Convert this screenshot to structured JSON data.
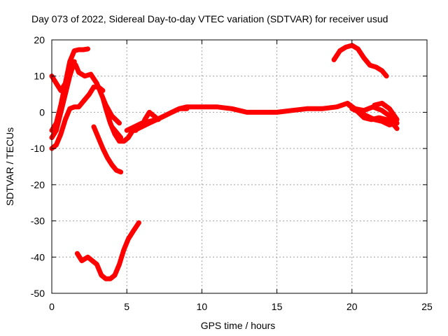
{
  "chart_data": {
    "type": "line",
    "title": "Day 073 of 2022, Sidereal Day-to-day VTEC variation (SDTVAR) for receiver usud",
    "xlabel": "GPS time / hours",
    "ylabel": "SDTVAR / TECUs",
    "xlim": [
      0,
      25
    ],
    "ylim": [
      -50,
      20
    ],
    "xticks": [
      0,
      5,
      10,
      15,
      20,
      25
    ],
    "yticks": [
      -50,
      -40,
      -30,
      -20,
      -10,
      0,
      10,
      20
    ],
    "grid": true,
    "series_color": "#ff0000",
    "series": [
      {
        "name": "arc-1",
        "x": [
          0.0,
          0.3,
          0.6,
          0.9,
          1.2,
          1.5,
          1.8,
          2.1,
          2.4
        ],
        "y": [
          -5,
          -3,
          2,
          8,
          14,
          17,
          17.3,
          17.3,
          17.5
        ]
      },
      {
        "name": "arc-2",
        "x": [
          0.0,
          0.3,
          0.6,
          0.9,
          1.2,
          1.4,
          1.6,
          1.8,
          2.2,
          2.6,
          3.0,
          3.3,
          3.6,
          4.0,
          4.5
        ],
        "y": [
          10,
          8,
          6,
          8,
          12,
          14,
          13,
          11,
          10,
          10.5,
          8,
          5,
          2,
          -1,
          -3
        ]
      },
      {
        "name": "arc-3",
        "x": [
          0.0,
          0.3,
          0.6,
          0.9,
          1.2,
          1.5,
          1.8,
          2.1,
          2.5,
          2.8,
          3.1,
          3.4
        ],
        "y": [
          -10,
          -9,
          -6,
          -2,
          1,
          1.5,
          1.5,
          3,
          5,
          7,
          7,
          6
        ]
      },
      {
        "name": "arc-4",
        "x": [
          0.0,
          0.3,
          0.6,
          0.9,
          1.2,
          1.5
        ],
        "y": [
          -7,
          -5,
          0,
          5,
          10,
          14
        ]
      },
      {
        "name": "arc-5",
        "x": [
          3.4,
          3.6,
          3.9,
          4.2,
          4.5,
          4.8,
          5.1,
          5.4,
          5.6
        ],
        "y": [
          4,
          1,
          -3,
          -6,
          -8,
          -8,
          -7,
          -5,
          -5
        ]
      },
      {
        "name": "arc-6",
        "x": [
          2.8,
          3.1,
          3.4,
          3.7,
          4.0,
          4.3,
          4.6
        ],
        "y": [
          -4,
          -7,
          -10,
          -12.5,
          -14.5,
          -16,
          -16.5
        ]
      },
      {
        "name": "arc-7",
        "x": [
          4.0,
          4.3,
          4.6
        ],
        "y": [
          -4,
          -5.5,
          -7
        ]
      },
      {
        "name": "arc-8",
        "x": [
          1.7,
          2.0,
          2.4,
          2.7,
          3.0,
          3.3,
          3.6,
          3.9,
          4.2,
          4.5,
          4.8,
          5.1,
          5.4,
          5.8
        ],
        "y": [
          -39,
          -41,
          -40,
          -41,
          -42,
          -45,
          -46,
          -46,
          -45,
          -42,
          -38,
          -35,
          -33,
          -30.5
        ]
      },
      {
        "name": "arc-9",
        "x": [
          5.0,
          5.5,
          6.0,
          6.5,
          7.0,
          7.5,
          8.0,
          8.5,
          9.0,
          10.0,
          11.0,
          12.0,
          13.0,
          14.0,
          15.0,
          16.0,
          17.0,
          18.0,
          19.0,
          19.7,
          20.2,
          20.8,
          21.4,
          22.0,
          22.5,
          23.0
        ],
        "y": [
          -5,
          -4,
          -3,
          -2.5,
          -2,
          -1,
          0,
          1,
          1.5,
          1.5,
          1.5,
          1,
          0,
          0,
          0,
          0.5,
          1,
          1,
          1.5,
          2.5,
          1,
          0.5,
          1.5,
          0.5,
          -1,
          -3
        ]
      },
      {
        "name": "arc-10",
        "x": [
          5.5,
          6.0,
          6.5,
          7.0,
          7.5,
          8.0,
          8.5,
          9.0
        ],
        "y": [
          -5,
          -4,
          -3,
          -2,
          -1,
          0,
          1,
          1
        ]
      },
      {
        "name": "arc-11",
        "x": [
          6.0,
          6.2,
          6.5,
          6.8,
          7.1
        ],
        "y": [
          -4,
          -2,
          0,
          -1,
          -2
        ]
      },
      {
        "name": "arc-12",
        "x": [
          19.8,
          20.3,
          20.8,
          21.3,
          21.8,
          22.3,
          22.8,
          23.0
        ],
        "y": [
          2,
          0.5,
          -1.5,
          -2,
          -1.5,
          -2,
          -3.5,
          -4.5
        ]
      },
      {
        "name": "arc-13",
        "x": [
          20.0,
          20.5,
          21.0,
          21.5,
          22.0,
          22.5,
          23.0
        ],
        "y": [
          1,
          0,
          -1,
          -2,
          -2.5,
          -3.5,
          -3
        ]
      },
      {
        "name": "arc-14",
        "x": [
          21.5,
          22.0,
          22.5,
          23.0
        ],
        "y": [
          2,
          2.5,
          1,
          -2
        ]
      },
      {
        "name": "arc-15",
        "x": [
          18.8,
          19.2,
          19.6,
          20.0,
          20.4,
          20.8,
          21.2,
          21.6,
          22.0,
          22.3
        ],
        "y": [
          14.5,
          17,
          18,
          18.5,
          17.5,
          15,
          13,
          12.5,
          11.5,
          10
        ]
      }
    ]
  }
}
